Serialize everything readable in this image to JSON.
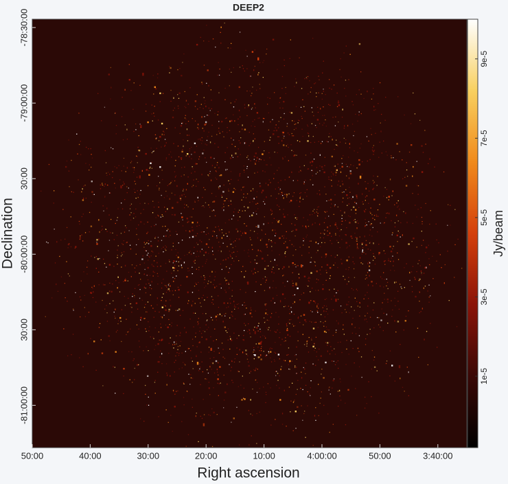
{
  "chart_data": {
    "type": "image",
    "title": "DEEP2",
    "xlabel": "Right ascension",
    "ylabel": "Declination",
    "colorbar_label": "Jy/beam",
    "xlim": [
      290,
      215
    ],
    "xticks": [
      {
        "value": 290,
        "label": "50:00"
      },
      {
        "value": 280,
        "label": "40:00"
      },
      {
        "value": 270,
        "label": "30:00"
      },
      {
        "value": 260,
        "label": "20:00"
      },
      {
        "value": 250,
        "label": "10:00"
      },
      {
        "value": 240,
        "label": "4:00:00"
      },
      {
        "value": 230,
        "label": "50:00"
      },
      {
        "value": 220,
        "label": "3:40:00"
      }
    ],
    "ylim": [
      -81.28,
      -78.445
    ],
    "yticks": [
      {
        "value": -78.5,
        "label": "-78:30:00"
      },
      {
        "value": -79,
        "label": "-79:00:00"
      },
      {
        "value": -79.5,
        "label": "30:00"
      },
      {
        "value": -80,
        "label": "-80:00:00"
      },
      {
        "value": -80.5,
        "label": "30:00"
      },
      {
        "value": -81,
        "label": "-81:00:00"
      }
    ],
    "clim": [
      -8e-06,
      0.0001
    ],
    "cticks": [
      {
        "value": 1e-05,
        "label": "1e-5"
      },
      {
        "value": 3e-05,
        "label": "3e-5"
      },
      {
        "value": 5e-05,
        "label": "5e-5"
      },
      {
        "value": 7e-05,
        "label": "7e-5"
      },
      {
        "value": 9e-05,
        "label": "9e-5"
      }
    ],
    "colormap": [
      "#000000",
      "#3a0806",
      "#8a1408",
      "#d4400c",
      "#f08a1c",
      "#f8d060",
      "#ffffff"
    ]
  }
}
